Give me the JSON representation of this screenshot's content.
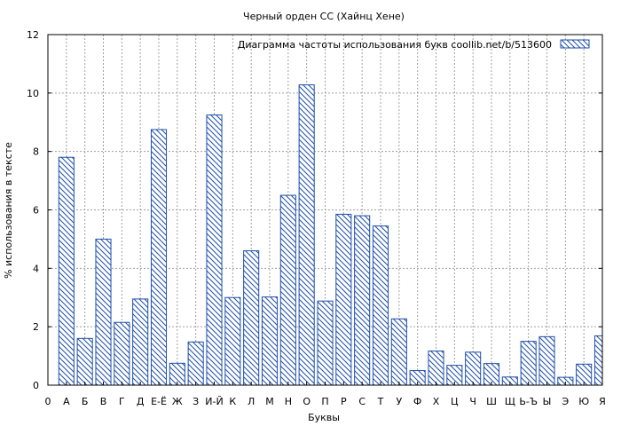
{
  "chart_data": {
    "type": "bar",
    "title": "Черный орден СС (Хайнц Хене)",
    "xlabel": "Буквы",
    "ylabel": "% использования в тексте",
    "legend": {
      "label": "Диаграмма частоты использования букв  coollib.net/b/513600",
      "placement": "top-right"
    },
    "ylim": [
      0,
      12
    ],
    "yticks": [
      0,
      2,
      4,
      6,
      8,
      10,
      12
    ],
    "grid": true,
    "bar_color": "#1f4fa8",
    "x_ticks": [
      "0",
      "А",
      "Б",
      "В",
      "Г",
      "Д",
      "Е-Ё",
      "Ж",
      "З",
      "И-Й",
      "К",
      "Л",
      "М",
      "Н",
      "О",
      "П",
      "Р",
      "С",
      "Т",
      "У",
      "Ф",
      "Х",
      "Ц",
      "Ч",
      "Ш",
      "Щ",
      "Ь-Ъ",
      "Ы",
      "Э",
      "Ю",
      "Я"
    ],
    "categories": [
      "А",
      "Б",
      "В",
      "Г",
      "Д",
      "Е-Ё",
      "Ж",
      "З",
      "И-Й",
      "К",
      "Л",
      "М",
      "Н",
      "О",
      "П",
      "Р",
      "С",
      "Т",
      "У",
      "Ф",
      "Х",
      "Ц",
      "Ч",
      "Ш",
      "Щ",
      "Ь-Ъ",
      "Ы",
      "Э",
      "Ю",
      "Я"
    ],
    "values": [
      7.8,
      1.6,
      5.0,
      2.15,
      2.95,
      8.75,
      0.75,
      1.48,
      9.25,
      3.0,
      4.6,
      3.02,
      6.5,
      10.28,
      2.88,
      5.85,
      5.8,
      5.45,
      2.27,
      0.5,
      1.17,
      0.68,
      1.13,
      0.74,
      0.28,
      1.5,
      1.66,
      0.27,
      0.72,
      1.69
    ]
  }
}
